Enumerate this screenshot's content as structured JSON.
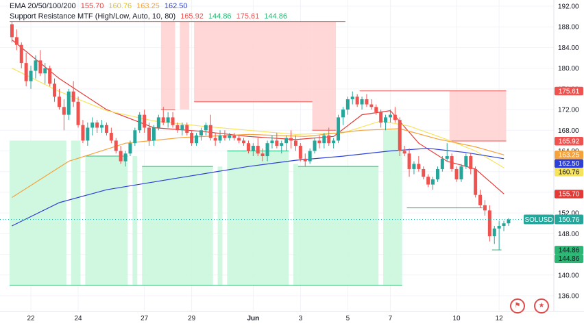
{
  "legend": {
    "ema": {
      "title": "EMA 20/50/100/200",
      "v20": "155.70",
      "v50": "160.76",
      "v100": "163.25",
      "v200": "162.50"
    },
    "sr": {
      "title": "Support Resistance MTF (High/Low, Auto, 10, 80)",
      "v1": "165.92",
      "v2": "144.86",
      "v3": "175.61",
      "v4": "144.86"
    }
  },
  "colors": {
    "up": "#26a69a",
    "down": "#ef5350",
    "ema20": "#e53935",
    "ema50": "#f7e35a",
    "ema100": "#f5a23a",
    "ema200": "#2d3fd6",
    "resistance_zone": "#ffd3d3",
    "support_zone": "#c8f7dc",
    "resistance_line": "#ef5350",
    "support_line": "#2bb673"
  },
  "icons": [
    "calendar-flag-icon",
    "us-flag-icon"
  ],
  "chart_data": {
    "type": "candlestick",
    "symbol": "SOLUSD",
    "last_price": "150.76",
    "y_axis": {
      "ticks": [
        "192.00",
        "188.00",
        "184.00",
        "180.00",
        "176.00",
        "172.00",
        "168.00",
        "164.00",
        "160.00",
        "156.00",
        "152.00",
        "148.00",
        "144.00",
        "140.00",
        "136.00"
      ],
      "range": [
        135,
        193
      ]
    },
    "x_axis": {
      "ticks": [
        {
          "label": "22",
          "index": 4
        },
        {
          "label": "24",
          "index": 14
        },
        {
          "label": "27",
          "index": 28
        },
        {
          "label": "29",
          "index": 38
        },
        {
          "label": "Jun",
          "index": 51
        },
        {
          "label": "3",
          "index": 61
        },
        {
          "label": "5",
          "index": 71
        },
        {
          "label": "7",
          "index": 80
        },
        {
          "label": "10",
          "index": 94
        },
        {
          "label": "12",
          "index": 103
        }
      ]
    },
    "price_badges": [
      {
        "label": "175.61",
        "value": 175.61,
        "bg": "#ef5350",
        "fg": "#ffffff"
      },
      {
        "label": "165.92",
        "value": 165.92,
        "bg": "#ef5350",
        "fg": "#ffffff"
      },
      {
        "label": "163.25",
        "value": 163.25,
        "bg": "#f5a23a",
        "fg": "#ffffff"
      },
      {
        "label": "162.50",
        "value": 162.5,
        "bg": "#2d3fd6",
        "fg": "#ffffff"
      },
      {
        "label": "160.76",
        "value": 160.76,
        "bg": "#f7e35a",
        "fg": "#131722"
      },
      {
        "label": "155.70",
        "value": 155.7,
        "bg": "#e53935",
        "fg": "#ffffff"
      },
      {
        "label": "144.86",
        "value": 144.86,
        "bg": "#2bb673",
        "fg": "#131722"
      },
      {
        "label": "144.86",
        "value": 144.86,
        "bg": "#2bb673",
        "fg": "#131722"
      }
    ],
    "candles": [
      [
        188.5,
        189.0,
        185.0,
        186.0
      ],
      [
        186.0,
        187.5,
        183.5,
        184.5
      ],
      [
        184.5,
        185.0,
        180.0,
        181.0
      ],
      [
        181.0,
        183.0,
        176.5,
        177.5
      ],
      [
        177.5,
        180.5,
        176.0,
        179.5
      ],
      [
        179.5,
        182.5,
        178.0,
        181.5
      ],
      [
        181.5,
        183.5,
        178.5,
        179.0
      ],
      [
        179.0,
        181.0,
        177.0,
        180.0
      ],
      [
        180.0,
        180.5,
        176.5,
        177.0
      ],
      [
        177.0,
        178.0,
        173.5,
        174.5
      ],
      [
        174.5,
        176.0,
        172.0,
        172.5
      ],
      [
        172.5,
        174.0,
        168.0,
        171.0
      ],
      [
        171.0,
        176.0,
        170.0,
        175.5
      ],
      [
        175.5,
        177.5,
        172.5,
        173.5
      ],
      [
        173.5,
        174.5,
        168.5,
        169.0
      ],
      [
        169.0,
        170.0,
        165.5,
        166.0
      ],
      [
        166.0,
        169.5,
        165.0,
        168.5
      ],
      [
        168.5,
        170.5,
        167.0,
        169.5
      ],
      [
        169.5,
        170.0,
        167.5,
        168.5
      ],
      [
        168.5,
        170.0,
        167.5,
        169.0
      ],
      [
        169.0,
        169.5,
        167.0,
        167.5
      ],
      [
        167.5,
        168.5,
        165.5,
        166.0
      ],
      [
        166.0,
        166.5,
        163.5,
        164.0
      ],
      [
        164.0,
        165.0,
        161.5,
        162.0
      ],
      [
        162.0,
        164.0,
        161.0,
        163.5
      ],
      [
        163.5,
        166.0,
        163.0,
        165.5
      ],
      [
        165.5,
        168.5,
        165.0,
        168.0
      ],
      [
        168.0,
        171.5,
        167.5,
        171.0
      ],
      [
        171.0,
        172.0,
        167.5,
        168.5
      ],
      [
        168.5,
        169.5,
        165.0,
        166.0
      ],
      [
        166.0,
        169.0,
        165.0,
        168.5
      ],
      [
        168.5,
        171.0,
        168.0,
        170.5
      ],
      [
        170.5,
        172.5,
        169.0,
        169.5
      ],
      [
        169.5,
        171.5,
        168.5,
        170.5
      ],
      [
        170.5,
        171.5,
        168.5,
        169.0
      ],
      [
        169.0,
        169.5,
        167.5,
        168.0
      ],
      [
        168.0,
        169.5,
        167.0,
        169.0
      ],
      [
        169.0,
        169.5,
        167.0,
        167.5
      ],
      [
        167.5,
        168.0,
        165.0,
        165.5
      ],
      [
        165.5,
        167.5,
        165.0,
        167.0
      ],
      [
        167.0,
        168.5,
        166.0,
        168.0
      ],
      [
        168.0,
        169.5,
        167.0,
        169.0
      ],
      [
        169.0,
        171.0,
        166.0,
        166.5
      ],
      [
        166.5,
        167.5,
        165.0,
        166.0
      ],
      [
        166.0,
        168.0,
        165.5,
        167.0
      ],
      [
        167.0,
        168.0,
        166.0,
        166.5
      ],
      [
        166.5,
        167.5,
        166.0,
        167.0
      ],
      [
        167.0,
        167.5,
        166.0,
        166.5
      ],
      [
        166.5,
        167.0,
        165.5,
        166.0
      ],
      [
        166.0,
        166.5,
        165.0,
        165.5
      ],
      [
        165.5,
        166.0,
        163.5,
        164.0
      ],
      [
        164.0,
        165.5,
        163.0,
        165.0
      ],
      [
        165.0,
        166.5,
        163.0,
        163.5
      ],
      [
        163.5,
        164.5,
        162.0,
        163.0
      ],
      [
        163.0,
        166.0,
        162.0,
        165.5
      ],
      [
        165.5,
        167.0,
        164.5,
        166.0
      ],
      [
        166.0,
        167.5,
        164.5,
        165.0
      ],
      [
        165.0,
        166.0,
        163.5,
        165.5
      ],
      [
        165.5,
        167.0,
        164.0,
        166.5
      ],
      [
        166.5,
        168.0,
        164.5,
        166.0
      ],
      [
        166.0,
        167.0,
        164.0,
        165.0
      ],
      [
        165.0,
        165.5,
        162.0,
        162.5
      ],
      [
        162.5,
        163.5,
        161.0,
        162.0
      ],
      [
        162.0,
        164.5,
        161.5,
        164.0
      ],
      [
        164.0,
        166.5,
        163.5,
        166.0
      ],
      [
        166.0,
        167.0,
        164.5,
        165.5
      ],
      [
        165.5,
        167.5,
        164.5,
        167.0
      ],
      [
        167.0,
        168.5,
        165.0,
        165.5
      ],
      [
        165.5,
        166.5,
        164.5,
        166.0
      ],
      [
        166.0,
        171.0,
        165.5,
        170.5
      ],
      [
        170.5,
        172.5,
        169.0,
        172.0
      ],
      [
        172.0,
        174.5,
        171.0,
        174.0
      ],
      [
        174.0,
        175.5,
        173.0,
        174.5
      ],
      [
        174.5,
        175.0,
        172.5,
        173.0
      ],
      [
        173.0,
        174.5,
        172.0,
        174.0
      ],
      [
        174.0,
        175.0,
        172.5,
        173.0
      ],
      [
        173.0,
        174.0,
        172.0,
        172.5
      ],
      [
        172.5,
        173.0,
        171.0,
        171.5
      ],
      [
        171.5,
        172.0,
        168.5,
        169.5
      ],
      [
        169.5,
        171.0,
        168.0,
        170.5
      ],
      [
        170.5,
        172.0,
        169.5,
        171.0
      ],
      [
        171.0,
        172.5,
        169.5,
        170.0
      ],
      [
        170.0,
        170.5,
        163.0,
        164.0
      ],
      [
        164.0,
        165.0,
        163.0,
        163.5
      ],
      [
        163.5,
        164.5,
        159.0,
        160.5
      ],
      [
        160.5,
        162.0,
        159.5,
        161.5
      ],
      [
        161.5,
        163.0,
        160.0,
        160.5
      ],
      [
        160.5,
        161.0,
        158.5,
        159.0
      ],
      [
        159.0,
        159.5,
        157.0,
        157.5
      ],
      [
        157.5,
        159.0,
        156.5,
        158.5
      ],
      [
        158.5,
        161.0,
        158.0,
        160.5
      ],
      [
        160.5,
        163.0,
        160.0,
        162.5
      ],
      [
        162.5,
        165.5,
        162.0,
        163.0
      ],
      [
        163.0,
        163.5,
        160.0,
        160.5
      ],
      [
        160.5,
        161.0,
        158.0,
        158.5
      ],
      [
        158.5,
        161.5,
        158.0,
        161.0
      ],
      [
        161.0,
        163.5,
        160.5,
        163.0
      ],
      [
        163.0,
        163.5,
        159.5,
        160.5
      ],
      [
        160.5,
        161.0,
        155.0,
        155.5
      ],
      [
        155.5,
        156.5,
        153.0,
        153.5
      ],
      [
        153.5,
        154.5,
        151.5,
        152.5
      ],
      [
        152.5,
        153.5,
        146.5,
        147.5
      ],
      [
        147.5,
        149.5,
        146.0,
        149.0
      ],
      [
        149.0,
        150.5,
        144.86,
        149.5
      ],
      [
        149.5,
        150.5,
        148.5,
        150.0
      ],
      [
        150.0,
        151.0,
        149.5,
        150.76
      ]
    ],
    "ema": {
      "ema20": [
        [
          0,
          185.5
        ],
        [
          10,
          178.0
        ],
        [
          20,
          172.0
        ],
        [
          30,
          168.5
        ],
        [
          40,
          167.8
        ],
        [
          50,
          166.8
        ],
        [
          60,
          166.2
        ],
        [
          68,
          166.8
        ],
        [
          74,
          171.0
        ],
        [
          80,
          171.8
        ],
        [
          86,
          165.5
        ],
        [
          92,
          162.0
        ],
        [
          98,
          160.5
        ],
        [
          104,
          155.7
        ]
      ],
      "ema50": [
        [
          0,
          180.0
        ],
        [
          10,
          175.5
        ],
        [
          20,
          171.8
        ],
        [
          30,
          169.8
        ],
        [
          40,
          168.8
        ],
        [
          50,
          168.0
        ],
        [
          60,
          167.2
        ],
        [
          70,
          167.5
        ],
        [
          78,
          169.8
        ],
        [
          84,
          168.8
        ],
        [
          92,
          166.2
        ],
        [
          98,
          164.0
        ],
        [
          104,
          160.76
        ]
      ],
      "ema100": [
        [
          0,
          155.0
        ],
        [
          12,
          162.0
        ],
        [
          24,
          165.5
        ],
        [
          36,
          166.6
        ],
        [
          50,
          167.2
        ],
        [
          62,
          166.8
        ],
        [
          74,
          168.0
        ],
        [
          82,
          168.3
        ],
        [
          90,
          166.3
        ],
        [
          98,
          164.8
        ],
        [
          104,
          163.25
        ]
      ],
      "ema200": [
        [
          0,
          149.5
        ],
        [
          10,
          154.0
        ],
        [
          20,
          156.5
        ],
        [
          30,
          158.0
        ],
        [
          40,
          159.5
        ],
        [
          50,
          161.0
        ],
        [
          60,
          162.2
        ],
        [
          70,
          163.0
        ],
        [
          80,
          164.0
        ],
        [
          88,
          164.5
        ],
        [
          96,
          163.7
        ],
        [
          104,
          162.5
        ]
      ]
    },
    "resistance_zones": [
      {
        "x0": 32,
        "x1": 35,
        "top": 189.0,
        "bottom": 172.0
      },
      {
        "x0": 36,
        "x1": 38,
        "top": 189.0,
        "bottom": 172.0
      },
      {
        "x0": 39,
        "x1": 64,
        "top": 189.0,
        "bottom": 173.5
      },
      {
        "x0": 64,
        "x1": 69,
        "top": 189.0,
        "bottom": 168.0
      },
      {
        "x0": 93,
        "x1": 105,
        "top": 175.61,
        "bottom": 165.92
      }
    ],
    "resistance_lines": [
      {
        "x0": 0,
        "x1": 71,
        "y": 189.0
      },
      {
        "x0": 32,
        "x1": 35,
        "y": 172.0
      },
      {
        "x0": 39,
        "x1": 64,
        "y": 173.5
      },
      {
        "x0": 64,
        "x1": 69,
        "y": 168.0
      },
      {
        "x0": 74,
        "x1": 105,
        "y": 175.61
      },
      {
        "x0": 93,
        "x1": 105,
        "y": 165.92
      }
    ],
    "support_zones": [
      {
        "x0": 0,
        "x1": 12,
        "top": 166.0,
        "bottom": 138.0
      },
      {
        "x0": 13,
        "x1": 15,
        "top": 166.0,
        "bottom": 138.0
      },
      {
        "x0": 16,
        "x1": 25,
        "top": 163.0,
        "bottom": 138.0
      },
      {
        "x0": 26,
        "x1": 27,
        "top": 163.0,
        "bottom": 138.0
      },
      {
        "x0": 28,
        "x1": 43,
        "top": 161.0,
        "bottom": 138.0
      },
      {
        "x0": 44,
        "x1": 45,
        "top": 161.0,
        "bottom": 138.0
      },
      {
        "x0": 46,
        "x1": 59,
        "top": 164.0,
        "bottom": 138.0
      },
      {
        "x0": 60,
        "x1": 61,
        "top": 161.5,
        "bottom": 138.0
      },
      {
        "x0": 61,
        "x1": 78,
        "top": 161.0,
        "bottom": 138.0
      },
      {
        "x0": 79,
        "x1": 83,
        "top": 168.0,
        "bottom": 138.0
      }
    ],
    "support_lines": [
      {
        "x0": 0,
        "x1": 83,
        "y": 138.0
      },
      {
        "x0": 16,
        "x1": 25,
        "y": 163.0
      },
      {
        "x0": 28,
        "x1": 43,
        "y": 161.0
      },
      {
        "x0": 46,
        "x1": 59,
        "y": 164.0
      },
      {
        "x0": 61,
        "x1": 78,
        "y": 161.0
      },
      {
        "x0": 84,
        "x1": 100,
        "y": 153.0
      },
      {
        "x0": 102,
        "x1": 104,
        "y": 144.86
      }
    ]
  }
}
